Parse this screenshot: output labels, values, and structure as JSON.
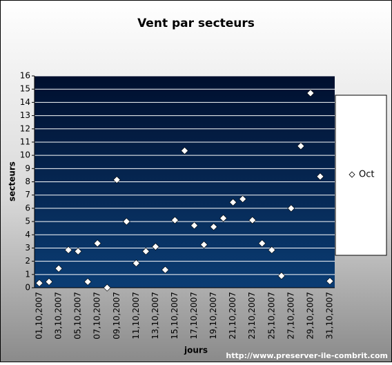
{
  "chart_data": {
    "type": "scatter",
    "title": "Vent par secteurs",
    "x_label": "jours",
    "y_label": "secteurs",
    "source": "http://www.preserver-ile-combrit.com",
    "categories": [
      "01,10,2007",
      null,
      "03,10,2007",
      null,
      "05,10,2007",
      null,
      "07,10,2007",
      null,
      "09,10,2007",
      null,
      "11,10,2007",
      null,
      "13,10,2007",
      null,
      "15,10,2007",
      null,
      "17,10,2007",
      null,
      "19,10,2007",
      null,
      "21,10,2007",
      null,
      "23,10,2007",
      null,
      "25,10,2007",
      null,
      "27,10,2007",
      null,
      "29,10,2007",
      null,
      "31,10,2007"
    ],
    "series": [
      {
        "name": "Oct",
        "color": "#ffffff",
        "values": [
          0.35,
          0.45,
          1.45,
          2.85,
          2.75,
          0.45,
          3.35,
          0,
          8.15,
          5.0,
          1.85,
          2.75,
          3.1,
          1.35,
          5.1,
          10.35,
          4.7,
          3.25,
          4.6,
          5.25,
          6.45,
          6.7,
          5.1,
          3.35,
          2.85,
          0.9,
          6.0,
          10.7,
          14.7,
          8.4,
          0.5
        ]
      }
    ],
    "ylim": [
      0,
      16
    ],
    "yticks": [
      0,
      1,
      2,
      3,
      4,
      5,
      6,
      7,
      8,
      9,
      10,
      11,
      12,
      13,
      14,
      15,
      16
    ],
    "grid": true,
    "legend": "right"
  }
}
